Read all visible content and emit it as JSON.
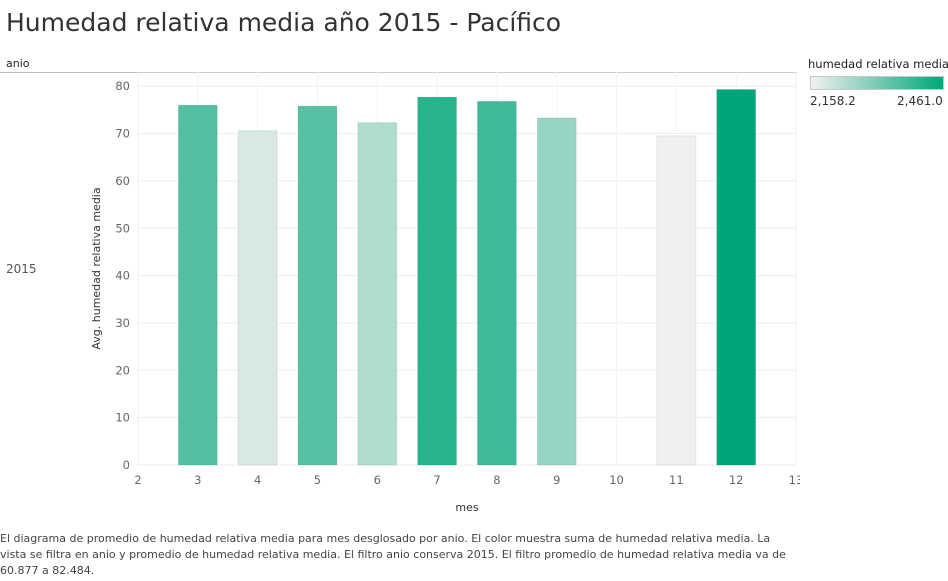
{
  "title": "Humedad relativa media año 2015 - Pacífico",
  "row_header": "anio",
  "row_value": "2015",
  "legend": {
    "title": "humedad relativa media",
    "min_label": "2,158.2",
    "max_label": "2,461.0",
    "colors": [
      "#f0f0f0",
      "#00a679"
    ]
  },
  "caption": "El diagrama de promedio de humedad relativa media para mes desglosado por anio.  El color muestra suma de humedad relativa media. La vista se filtra en anio y promedio de humedad relativa media. El filtro anio conserva 2015. El filtro promedio de humedad relativa media va de 60.877 a 82.484.",
  "chart_data": {
    "type": "bar",
    "title": "",
    "xlabel": "mes",
    "ylabel": "Avg. humedad relativa media",
    "xlim": [
      2,
      13
    ],
    "ylim": [
      0,
      83
    ],
    "x_ticks": [
      2,
      3,
      4,
      5,
      6,
      7,
      8,
      9,
      10,
      11,
      12,
      13
    ],
    "y_ticks": [
      0,
      10,
      20,
      30,
      40,
      50,
      60,
      70,
      80
    ],
    "grid": true,
    "legend_position": "top-right",
    "x": [
      3,
      4,
      5,
      6,
      7,
      8,
      9,
      11,
      12
    ],
    "values": [
      76.0,
      70.6,
      75.8,
      72.3,
      77.7,
      76.8,
      73.3,
      69.5,
      79.3
    ],
    "color_values": [
      2355,
      2189,
      2350,
      2242,
      2409,
      2381,
      2272,
      2158.2,
      2461.0
    ]
  }
}
